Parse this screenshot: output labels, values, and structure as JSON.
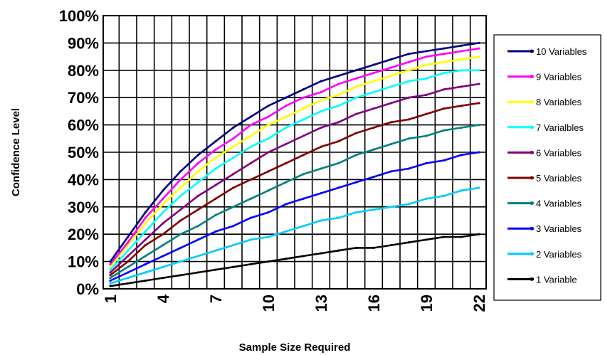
{
  "chart_data": {
    "type": "line",
    "title": "",
    "xlabel": "Sample Size Required",
    "ylabel": "Confidence Level",
    "x": [
      1,
      2,
      3,
      4,
      5,
      6,
      7,
      8,
      9,
      10,
      11,
      12,
      13,
      14,
      15,
      16,
      17,
      18,
      19,
      20,
      21,
      22
    ],
    "x_tick_labels": [
      "1",
      "4",
      "7",
      "10",
      "13",
      "16",
      "19",
      "22"
    ],
    "y_tick_labels": [
      "0%",
      "10%",
      "20%",
      "30%",
      "40%",
      "50%",
      "60%",
      "70%",
      "80%",
      "90%",
      "100%"
    ],
    "xlim": [
      1,
      22
    ],
    "ylim": [
      0,
      100
    ],
    "grid": true,
    "legend_position": "right",
    "series": [
      {
        "name": "10 Variables",
        "color": "#000080",
        "values": [
          10,
          19,
          28,
          36,
          43,
          49,
          54,
          59,
          63,
          67,
          70,
          73,
          76,
          78,
          80,
          82,
          84,
          86,
          87,
          88,
          89,
          90
        ]
      },
      {
        "name": "9 Variables",
        "color": "#ff00ff",
        "values": [
          9,
          17,
          26,
          33,
          40,
          46,
          51,
          55,
          60,
          63,
          67,
          70,
          72,
          75,
          77,
          79,
          81,
          83,
          85,
          86,
          87,
          88
        ]
      },
      {
        "name": "8 Variables",
        "color": "#ffff00",
        "values": [
          8,
          16,
          24,
          31,
          37,
          43,
          48,
          52,
          56,
          60,
          63,
          66,
          69,
          71,
          74,
          76,
          78,
          80,
          82,
          83,
          84,
          85
        ]
      },
      {
        "name": "7 Varialbles",
        "color": "#00ffff",
        "values": [
          7,
          14,
          21,
          28,
          34,
          39,
          44,
          48,
          52,
          55,
          59,
          62,
          65,
          67,
          70,
          72,
          74,
          76,
          77,
          79,
          80,
          80
        ]
      },
      {
        "name": "6 Variables",
        "color": "#800080",
        "values": [
          6,
          12,
          18,
          24,
          29,
          34,
          38,
          42,
          46,
          50,
          53,
          56,
          59,
          61,
          64,
          66,
          68,
          70,
          71,
          73,
          74,
          75
        ]
      },
      {
        "name": "5 Variables",
        "color": "#800000",
        "values": [
          5,
          10,
          16,
          20,
          25,
          29,
          33,
          37,
          40,
          43,
          46,
          49,
          52,
          54,
          57,
          59,
          61,
          62,
          64,
          66,
          67,
          68
        ]
      },
      {
        "name": "4 Variables",
        "color": "#008080",
        "values": [
          4,
          8,
          12,
          16,
          20,
          23,
          27,
          30,
          33,
          36,
          39,
          42,
          44,
          46,
          49,
          51,
          53,
          55,
          56,
          58,
          59,
          60
        ]
      },
      {
        "name": "3 Variables",
        "color": "#0000ff",
        "values": [
          3,
          6,
          9,
          12,
          15,
          18,
          21,
          23,
          26,
          28,
          31,
          33,
          35,
          37,
          39,
          41,
          43,
          44,
          46,
          47,
          49,
          50
        ]
      },
      {
        "name": "2 Variables",
        "color": "#00ccff",
        "values": [
          2,
          4,
          6,
          8,
          10,
          12,
          14,
          16,
          18,
          19,
          21,
          23,
          25,
          26,
          28,
          29,
          30,
          31,
          33,
          34,
          36,
          37
        ]
      },
      {
        "name": "1 Variable",
        "color": "#000000",
        "values": [
          1,
          2,
          3,
          4,
          5,
          6,
          7,
          8,
          9,
          10,
          11,
          12,
          13,
          14,
          15,
          15,
          16,
          17,
          18,
          19,
          19,
          20
        ]
      }
    ]
  }
}
